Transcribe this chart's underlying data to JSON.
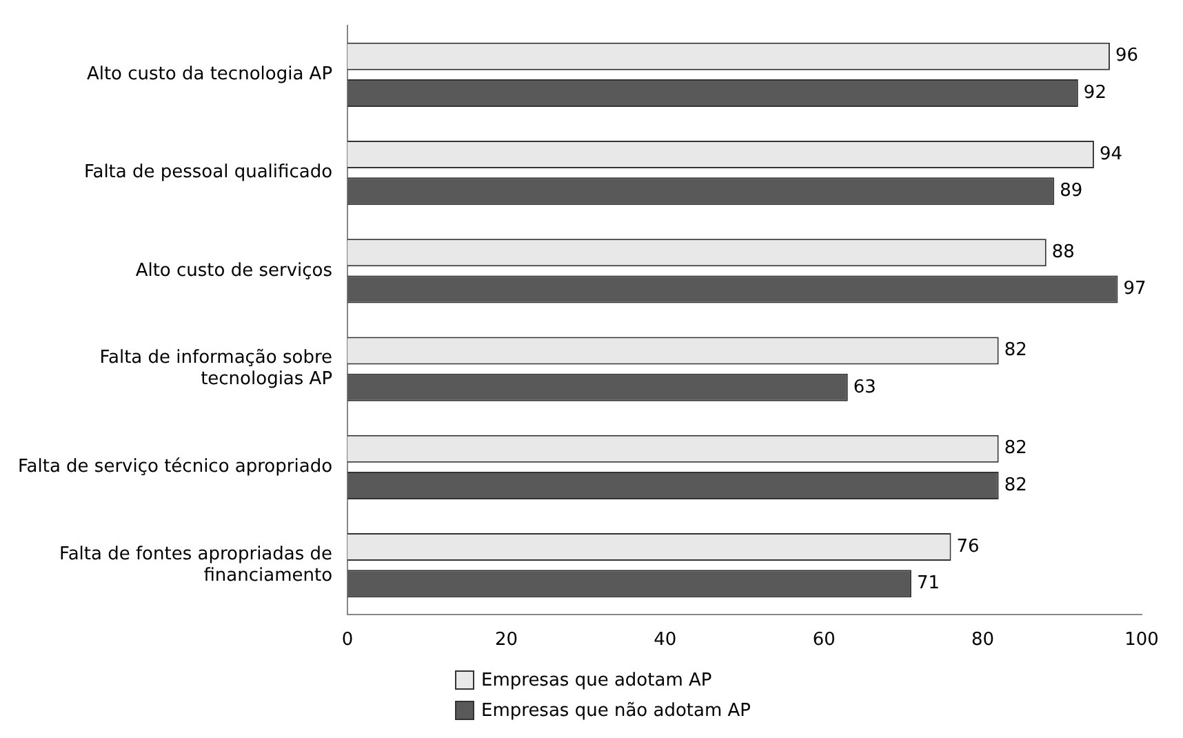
{
  "chart_data": {
    "type": "bar",
    "orientation": "horizontal",
    "categories": [
      "Alto custo da tecnologia AP",
      "Falta de pessoal qualificado",
      "Alto custo de serviços",
      "Falta de informação sobre tecnologias AP",
      "Falta de serviço técnico apropriado",
      "Falta de fontes apropriadas de financiamento"
    ],
    "series": [
      {
        "name": "Empresas que adotam AP",
        "color": "#e8e8e8",
        "values": [
          96,
          94,
          88,
          82,
          82,
          76
        ]
      },
      {
        "name": "Empresas que não adotam AP",
        "color": "#595959",
        "values": [
          92,
          89,
          97,
          63,
          82,
          71
        ]
      }
    ],
    "xlim": [
      0,
      100
    ],
    "xticks": [
      0,
      20,
      40,
      60,
      80,
      100
    ],
    "grid": false,
    "legend": "bottom",
    "data_labels": true
  }
}
